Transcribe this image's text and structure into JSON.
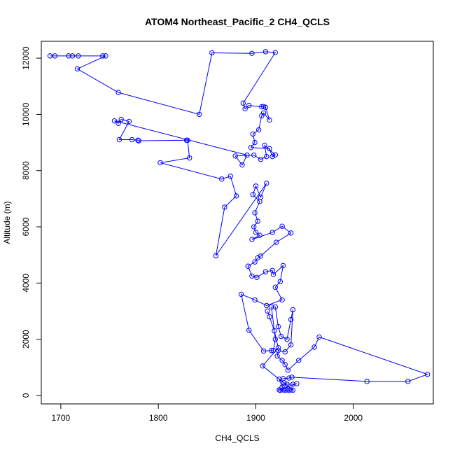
{
  "chart_data": {
    "type": "scatter",
    "title": "ATOM4 Northeast_Pacific_2 CH4_QCLS",
    "xlabel": "CH4_QCLS",
    "ylabel": "Altitude (m)",
    "xlim": [
      1680,
      2082
    ],
    "ylim": [
      -300,
      12600
    ],
    "x_ticks": [
      1700,
      1800,
      1900,
      2000
    ],
    "y_ticks": [
      0,
      2000,
      4000,
      6000,
      8000,
      10000,
      12000
    ],
    "grid": false,
    "legend": "none",
    "color": "#0000ff",
    "series": [
      {
        "points": [
          [
            1689,
            12080
          ],
          [
            1694,
            12080
          ],
          [
            1708,
            12080
          ],
          [
            1712,
            12080
          ],
          [
            1718,
            12080
          ],
          [
            1743,
            12080
          ],
          [
            1746,
            12080
          ],
          [
            1717,
            11620
          ],
          [
            1759,
            10780
          ],
          [
            1842,
            10000
          ],
          [
            1855,
            12190
          ],
          [
            1896,
            12170
          ],
          [
            1910,
            12230
          ],
          [
            1920,
            12200
          ],
          [
            1887,
            10400
          ],
          [
            1889,
            10200
          ],
          [
            1893,
            10320
          ],
          [
            1906,
            10270
          ],
          [
            1908,
            10280
          ],
          [
            1910,
            10250
          ],
          [
            1914,
            9800
          ],
          [
            1908,
            10050
          ],
          [
            1906,
            9950
          ],
          [
            1903,
            9450
          ],
          [
            1897,
            9300
          ],
          [
            1899,
            9000
          ],
          [
            1895,
            8820
          ],
          [
            1914,
            8780
          ],
          [
            1917,
            8500
          ],
          [
            1920,
            8560
          ],
          [
            1909,
            8900
          ],
          [
            1911,
            8500
          ],
          [
            1905,
            8400
          ],
          [
            1898,
            8550
          ],
          [
            1879,
            8520
          ],
          [
            1886,
            8200
          ],
          [
            1891,
            8550
          ],
          [
            1755,
            9770
          ],
          [
            1759,
            9680
          ],
          [
            1762,
            9820
          ],
          [
            1770,
            9750
          ],
          [
            1760,
            9100
          ],
          [
            1773,
            9100
          ],
          [
            1779,
            9080
          ],
          [
            1780,
            9060
          ],
          [
            1829,
            9080
          ],
          [
            1830,
            9080
          ],
          [
            1832,
            8450
          ],
          [
            1802,
            8280
          ],
          [
            1865,
            7700
          ],
          [
            1874,
            7800
          ],
          [
            1880,
            7100
          ],
          [
            1868,
            6700
          ],
          [
            1859,
            4970
          ],
          [
            1911,
            7550
          ],
          [
            1905,
            7050
          ],
          [
            1900,
            7450
          ],
          [
            1897,
            7150
          ],
          [
            1904,
            6900
          ],
          [
            1899,
            6500
          ],
          [
            1902,
            6200
          ],
          [
            1898,
            6000
          ],
          [
            1900,
            5800
          ],
          [
            1904,
            5700
          ],
          [
            1896,
            5550
          ],
          [
            1917,
            5800
          ],
          [
            1927,
            6020
          ],
          [
            1936,
            5780
          ],
          [
            1921,
            5450
          ],
          [
            1905,
            4960
          ],
          [
            1902,
            4900
          ],
          [
            1899,
            4750
          ],
          [
            1892,
            4600
          ],
          [
            1896,
            4250
          ],
          [
            1901,
            4200
          ],
          [
            1910,
            4400
          ],
          [
            1917,
            4450
          ],
          [
            1918,
            4300
          ],
          [
            1928,
            4620
          ],
          [
            1925,
            4050
          ],
          [
            1920,
            3850
          ],
          [
            1927,
            3400
          ],
          [
            1911,
            3200
          ],
          [
            1899,
            3400
          ],
          [
            1885,
            3600
          ],
          [
            1893,
            2320
          ],
          [
            1908,
            1580
          ],
          [
            1916,
            1600
          ],
          [
            1918,
            1600
          ],
          [
            1920,
            2000
          ],
          [
            1916,
            3150
          ],
          [
            1920,
            3150
          ],
          [
            1923,
            2450
          ],
          [
            1926,
            2100
          ],
          [
            1932,
            2000
          ],
          [
            1936,
            2700
          ],
          [
            1938,
            3050
          ],
          [
            1936,
            1800
          ],
          [
            1930,
            1550
          ],
          [
            1923,
            1600
          ],
          [
            1922,
            1400
          ],
          [
            1927,
            1250
          ],
          [
            1930,
            1100
          ],
          [
            1933,
            900
          ],
          [
            1944,
            1250
          ],
          [
            1960,
            1720
          ],
          [
            1965,
            2080
          ],
          [
            2076,
            750
          ],
          [
            2056,
            500
          ],
          [
            2014,
            500
          ],
          [
            1937,
            650
          ],
          [
            1934,
            620
          ],
          [
            1928,
            600
          ],
          [
            1924,
            580
          ],
          [
            1927,
            300
          ],
          [
            1929,
            450
          ],
          [
            1932,
            400
          ],
          [
            1938,
            400
          ],
          [
            1942,
            420
          ],
          [
            1924,
            200
          ],
          [
            1925,
            180
          ],
          [
            1928,
            200
          ],
          [
            1930,
            180
          ],
          [
            1932,
            200
          ],
          [
            1934,
            180
          ],
          [
            1936,
            200
          ],
          [
            1938,
            190
          ],
          [
            1907,
            1050
          ],
          [
            1923,
            1700
          ],
          [
            1919,
            2300
          ],
          [
            1914,
            2800
          ],
          [
            1912,
            3000
          ]
        ]
      }
    ]
  }
}
